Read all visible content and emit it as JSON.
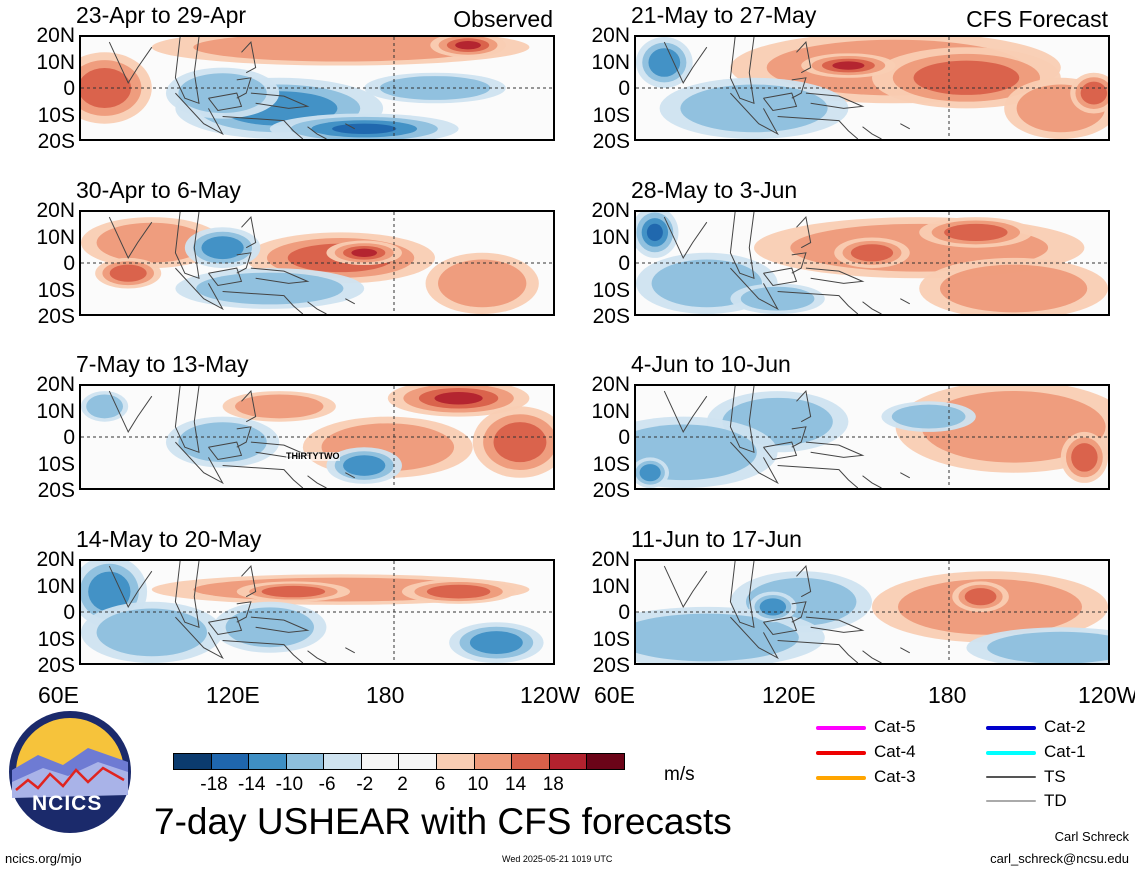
{
  "panels": [
    {
      "title": "23-Apr to 29-Apr",
      "tag": "Observed",
      "side": "left",
      "row": 0,
      "storm_label": ""
    },
    {
      "title": "30-Apr to 6-May",
      "tag": "",
      "side": "left",
      "row": 1,
      "storm_label": ""
    },
    {
      "title": "7-May to 13-May",
      "tag": "",
      "side": "left",
      "row": 2,
      "storm_label": "THIRTYTWO"
    },
    {
      "title": "14-May to 20-May",
      "tag": "",
      "side": "left",
      "row": 3,
      "storm_label": ""
    },
    {
      "title": "21-May to 27-May",
      "tag": "CFS Forecast",
      "side": "right",
      "row": 0,
      "storm_label": ""
    },
    {
      "title": "28-May to 3-Jun",
      "tag": "",
      "side": "right",
      "row": 1,
      "storm_label": ""
    },
    {
      "title": "4-Jun to 10-Jun",
      "tag": "",
      "side": "right",
      "row": 2,
      "storm_label": ""
    },
    {
      "title": "11-Jun to 17-Jun",
      "tag": "",
      "side": "right",
      "row": 3,
      "storm_label": ""
    }
  ],
  "lat_labels": [
    "20N",
    "10N",
    "0",
    "10S",
    "20S"
  ],
  "lon_labels": [
    "60E",
    "120E",
    "180",
    "120W"
  ],
  "colorbar": {
    "colors": [
      "#0b3b6e",
      "#1f66ad",
      "#3f8fc4",
      "#8dbfdd",
      "#cfe3f0",
      "#f6f6f6",
      "#f6f6f6",
      "#f9cdb3",
      "#ee9a7a",
      "#d8604a",
      "#b2222e",
      "#6b0418"
    ],
    "tick_labels": [
      "-18",
      "-14",
      "-10",
      "-6",
      "-2",
      "2",
      "6",
      "10",
      "14",
      "18"
    ],
    "unit": "m/s"
  },
  "storm_legend": [
    {
      "label": "Cat-5",
      "color": "#ff00ff"
    },
    {
      "label": "Cat-4",
      "color": "#ee0000"
    },
    {
      "label": "Cat-3",
      "color": "#ffa500"
    },
    {
      "label": "Cat-2",
      "color": "#0000cc"
    },
    {
      "label": "Cat-1",
      "color": "#00ffff"
    },
    {
      "label": "TS",
      "color": "#555555"
    },
    {
      "label": "TD",
      "color": "#aaaaaa"
    }
  ],
  "logo_text": "NCICS",
  "main_title": "7-day USHEAR with CFS forecasts",
  "footer": {
    "url": "ncics.org/mjo",
    "timestamp": "Wed 2025-05-21 1019 UTC",
    "author": "Carl Schreck",
    "email": "carl_schreck@ncsu.edu"
  }
}
